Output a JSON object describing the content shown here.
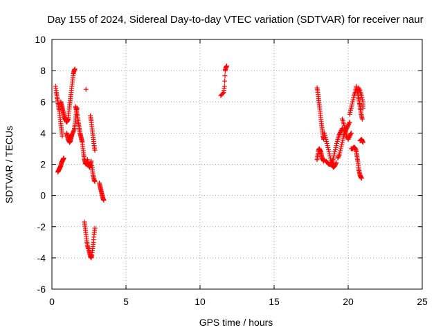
{
  "chart_data": {
    "type": "scatter",
    "title": "Day 155 of 2024, Sidereal Day-to-day VTEC variation (SDTVAR) for receiver naur",
    "xlabel": "GPS time / hours",
    "ylabel": "SDTVAR / TECUs",
    "xlim": [
      0,
      25
    ],
    "ylim": [
      -6,
      10
    ],
    "xticks": [
      0,
      5,
      10,
      15,
      20,
      25
    ],
    "yticks": [
      -6,
      -4,
      -2,
      0,
      2,
      4,
      6,
      8,
      10
    ],
    "grid": true,
    "marker": "+",
    "color": "#ff0000",
    "series": [
      {
        "name": "SDTVAR",
        "segments": [
          [
            [
              0.25,
              7.0
            ],
            [
              0.3,
              6.6
            ],
            [
              0.35,
              6.3
            ],
            [
              0.4,
              6.0
            ],
            [
              0.45,
              5.7
            ],
            [
              0.5,
              5.4
            ],
            [
              0.55,
              5.0
            ],
            [
              0.6,
              4.6
            ],
            [
              0.65,
              4.2
            ],
            [
              0.7,
              3.8
            ]
          ],
          [
            [
              0.4,
              1.5
            ],
            [
              0.45,
              1.6
            ],
            [
              0.5,
              1.7
            ],
            [
              0.55,
              1.8
            ],
            [
              0.6,
              1.9
            ],
            [
              0.65,
              2.1
            ],
            [
              0.7,
              2.2
            ],
            [
              0.75,
              2.3
            ],
            [
              0.8,
              2.4
            ]
          ],
          [
            [
              0.6,
              6.0
            ],
            [
              0.65,
              5.8
            ],
            [
              0.7,
              5.6
            ],
            [
              0.75,
              5.4
            ],
            [
              0.8,
              5.2
            ],
            [
              0.85,
              5.0
            ],
            [
              0.9,
              4.9
            ],
            [
              0.95,
              4.8
            ],
            [
              1.0,
              4.7
            ],
            [
              1.05,
              4.8
            ],
            [
              1.1,
              4.9
            ]
          ],
          [
            [
              1.0,
              4.0
            ],
            [
              1.05,
              3.8
            ],
            [
              1.1,
              3.6
            ],
            [
              1.15,
              3.5
            ],
            [
              1.2,
              3.4
            ],
            [
              1.25,
              3.5
            ],
            [
              1.3,
              3.7
            ],
            [
              1.35,
              3.9
            ]
          ],
          [
            [
              1.1,
              5.0
            ],
            [
              1.15,
              5.4
            ],
            [
              1.2,
              5.8
            ],
            [
              1.25,
              6.2
            ],
            [
              1.3,
              6.6
            ],
            [
              1.35,
              7.0
            ],
            [
              1.4,
              7.4
            ],
            [
              1.45,
              7.8
            ],
            [
              1.5,
              8.0
            ],
            [
              1.55,
              8.1
            ]
          ],
          [
            [
              1.2,
              3.6
            ],
            [
              1.3,
              3.8
            ],
            [
              1.4,
              4.0
            ],
            [
              1.5,
              4.2
            ],
            [
              1.55,
              4.5
            ],
            [
              1.6,
              4.9
            ],
            [
              1.65,
              5.3
            ],
            [
              1.7,
              5.6
            ]
          ],
          [
            [
              1.6,
              5.7
            ],
            [
              1.65,
              5.5
            ],
            [
              1.7,
              5.2
            ],
            [
              1.75,
              4.9
            ],
            [
              1.8,
              4.6
            ],
            [
              1.85,
              4.3
            ],
            [
              1.9,
              4.0
            ],
            [
              1.95,
              3.8
            ],
            [
              2.0,
              3.6
            ],
            [
              2.05,
              3.4
            ],
            [
              2.1,
              3.0
            ],
            [
              2.15,
              2.6
            ],
            [
              2.2,
              2.3
            ],
            [
              2.25,
              2.1
            ],
            [
              2.3,
              2.0
            ]
          ],
          [
            [
              2.2,
              -1.7
            ],
            [
              2.25,
              -2.1
            ],
            [
              2.3,
              -2.5
            ],
            [
              2.35,
              -2.9
            ],
            [
              2.4,
              -3.2
            ],
            [
              2.45,
              -3.4
            ]
          ],
          [
            [
              2.3,
              6.8
            ]
          ],
          [
            [
              2.4,
              2.3
            ],
            [
              2.45,
              2.0
            ],
            [
              2.5,
              1.9
            ],
            [
              2.55,
              1.8
            ],
            [
              2.6,
              2.0
            ],
            [
              2.65,
              2.2
            ]
          ],
          [
            [
              2.6,
              5.1
            ],
            [
              2.65,
              4.8
            ],
            [
              2.7,
              4.4
            ],
            [
              2.75,
              4.0
            ],
            [
              2.8,
              3.6
            ],
            [
              2.85,
              3.2
            ],
            [
              2.9,
              2.9
            ]
          ],
          [
            [
              2.5,
              -3.5
            ],
            [
              2.55,
              -3.7
            ],
            [
              2.6,
              -3.9
            ],
            [
              2.65,
              -4.0
            ],
            [
              2.7,
              -3.8
            ],
            [
              2.75,
              -3.4
            ],
            [
              2.8,
              -3.0
            ],
            [
              2.85,
              -2.5
            ],
            [
              2.9,
              -2.1
            ]
          ],
          [
            [
              2.7,
              1.9
            ],
            [
              2.75,
              1.5
            ],
            [
              2.8,
              1.2
            ],
            [
              2.85,
              1.0
            ],
            [
              2.9,
              0.9
            ]
          ],
          [
            [
              3.2,
              0.8
            ],
            [
              3.25,
              0.6
            ],
            [
              3.3,
              0.4
            ],
            [
              3.35,
              0.2
            ],
            [
              3.4,
              0.0
            ],
            [
              3.45,
              -0.2
            ],
            [
              3.5,
              -0.3
            ]
          ],
          [
            [
              11.4,
              6.4
            ],
            [
              11.6,
              6.6
            ],
            [
              11.65,
              7.0
            ],
            [
              11.7,
              8.0
            ],
            [
              11.75,
              8.2
            ],
            [
              11.8,
              8.3
            ]
          ],
          [
            [
              17.9,
              6.9
            ],
            [
              17.95,
              6.6
            ],
            [
              18.0,
              6.2
            ],
            [
              18.05,
              5.8
            ],
            [
              18.1,
              5.4
            ],
            [
              18.15,
              5.0
            ],
            [
              18.2,
              4.6
            ],
            [
              18.25,
              4.2
            ],
            [
              18.3,
              3.8
            ],
            [
              18.35,
              3.6
            ]
          ],
          [
            [
              17.9,
              2.3
            ],
            [
              17.95,
              2.6
            ],
            [
              18.0,
              2.9
            ],
            [
              18.05,
              3.0
            ],
            [
              18.1,
              2.9
            ],
            [
              18.15,
              2.8
            ],
            [
              18.2,
              2.6
            ],
            [
              18.25,
              2.4
            ],
            [
              18.3,
              2.3
            ],
            [
              18.35,
              2.2
            ]
          ],
          [
            [
              18.4,
              4.0
            ],
            [
              18.5,
              3.6
            ],
            [
              18.6,
              3.2
            ],
            [
              18.7,
              2.8
            ],
            [
              18.8,
              2.4
            ],
            [
              18.9,
              2.0
            ],
            [
              19.0,
              1.8
            ],
            [
              19.1,
              1.9
            ],
            [
              19.2,
              2.1
            ]
          ],
          [
            [
              18.5,
              2.2
            ],
            [
              18.6,
              2.1
            ],
            [
              18.7,
              2.0
            ],
            [
              18.8,
              2.0
            ],
            [
              18.9,
              2.1
            ],
            [
              19.0,
              2.4
            ],
            [
              19.1,
              2.8
            ],
            [
              19.2,
              3.2
            ],
            [
              19.3,
              3.6
            ],
            [
              19.4,
              3.9
            ],
            [
              19.5,
              4.1
            ],
            [
              19.6,
              4.3
            ]
          ],
          [
            [
              19.3,
              2.4
            ],
            [
              19.4,
              2.6
            ],
            [
              19.5,
              3.0
            ],
            [
              19.6,
              3.4
            ],
            [
              19.7,
              3.8
            ],
            [
              19.8,
              4.1
            ],
            [
              19.9,
              4.3
            ],
            [
              20.0,
              4.5
            ],
            [
              20.1,
              4.7
            ]
          ],
          [
            [
              19.6,
              4.9
            ],
            [
              19.7,
              4.6
            ],
            [
              19.8,
              4.2
            ],
            [
              19.9,
              3.8
            ],
            [
              20.0,
              3.6
            ],
            [
              20.1,
              3.8
            ],
            [
              20.2,
              4.0
            ]
          ],
          [
            [
              20.1,
              5.2
            ],
            [
              20.2,
              5.6
            ],
            [
              20.3,
              6.0
            ],
            [
              20.4,
              6.4
            ],
            [
              20.5,
              6.7
            ],
            [
              20.55,
              7.0
            ]
          ],
          [
            [
              20.2,
              3.0
            ],
            [
              20.3,
              3.0
            ],
            [
              20.4,
              3.1
            ],
            [
              20.5,
              3.0
            ],
            [
              20.55,
              2.8
            ],
            [
              20.6,
              2.5
            ],
            [
              20.65,
              2.2
            ],
            [
              20.7,
              1.8
            ],
            [
              20.75,
              1.5
            ],
            [
              20.8,
              1.3
            ],
            [
              20.85,
              1.2
            ],
            [
              20.9,
              1.1
            ]
          ],
          [
            [
              20.6,
              6.8
            ],
            [
              20.65,
              6.6
            ],
            [
              20.7,
              6.3
            ],
            [
              20.75,
              6.0
            ],
            [
              20.8,
              5.7
            ],
            [
              20.85,
              5.4
            ],
            [
              20.9,
              5.1
            ],
            [
              20.95,
              4.9
            ]
          ],
          [
            [
              20.7,
              6.9
            ],
            [
              20.8,
              6.7
            ],
            [
              20.9,
              6.4
            ],
            [
              21.0,
              6.0
            ],
            [
              21.0,
              5.6
            ]
          ],
          [
            [
              20.8,
              3.5
            ],
            [
              20.9,
              3.6
            ],
            [
              20.95,
              3.5
            ],
            [
              21.0,
              3.4
            ]
          ]
        ]
      }
    ]
  }
}
